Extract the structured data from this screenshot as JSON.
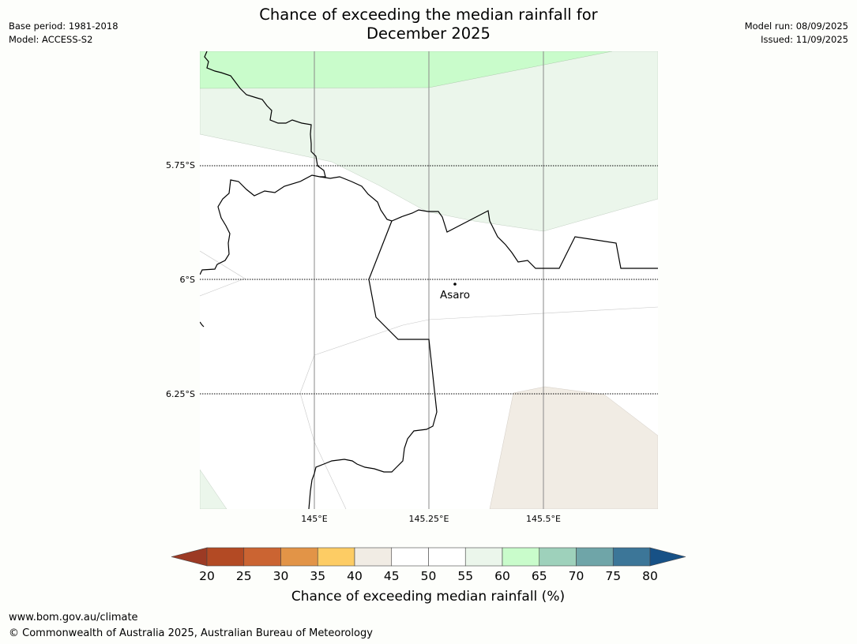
{
  "title_line1": "Chance of exceeding the median rainfall for",
  "title_line2": "December 2025",
  "base_period": "Base period: 1981-2018",
  "model": "Model: ACCESS-S2",
  "model_run": "Model run: 08/09/2025",
  "issued": "Issued: 11/09/2025",
  "map": {
    "lat_labels": [
      "5.75°S",
      "6°S",
      "6.25°S"
    ],
    "lon_labels": [
      "145°E",
      "145.25°E",
      "145.5°E"
    ],
    "place": {
      "name": "Asaro"
    }
  },
  "colorbar": {
    "label": "Chance of exceeding median rainfall (%)",
    "ticks": [
      "20",
      "25",
      "30",
      "35",
      "40",
      "45",
      "50",
      "55",
      "60",
      "65",
      "70",
      "75",
      "80"
    ],
    "colors": [
      "#9c3a24",
      "#b34a24",
      "#cb6432",
      "#e29447",
      "#fdcc64",
      "#f1ece4",
      "#ffffff",
      "#ffffff",
      "#ebf6eb",
      "#c9fccb",
      "#9ed1bb",
      "#6fa5a8",
      "#3c7698",
      "#175186"
    ]
  },
  "footer": {
    "url": "www.bom.gov.au/climate",
    "copyright": "© Commonwealth of Australia 2025, Australian Bureau of Meteorology"
  }
}
